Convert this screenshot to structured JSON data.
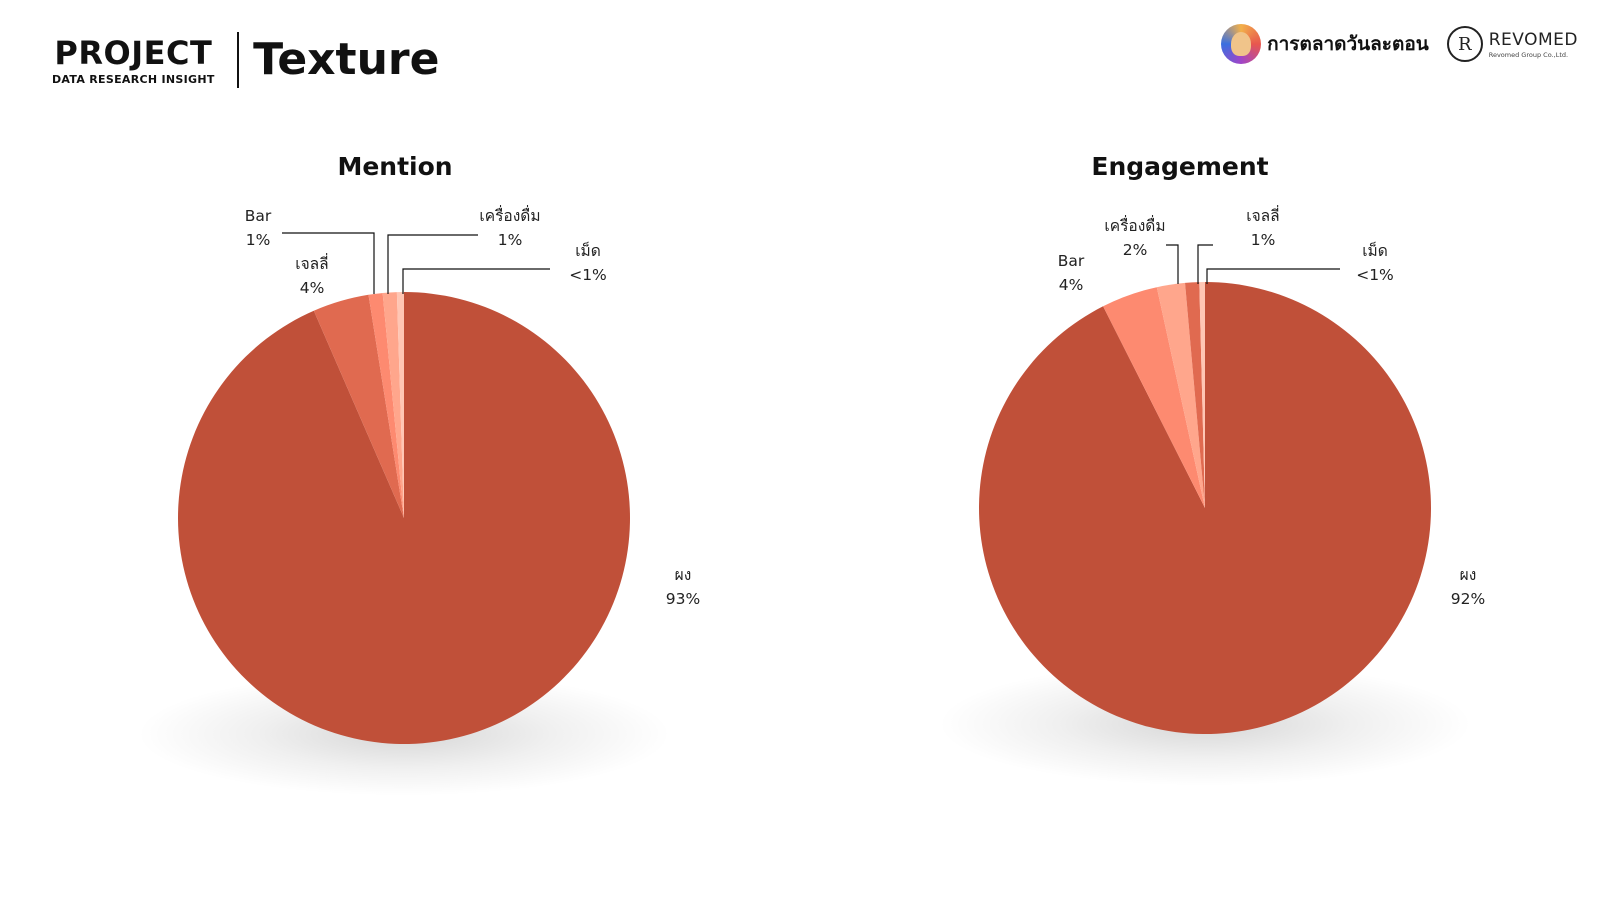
{
  "header": {
    "project_word": "PROJECT",
    "project_sub": "DATA RESEARCH INSIGHT",
    "page_title": "Texture"
  },
  "brands": {
    "brand1_name": "การตลาดวันละตอน",
    "brand1_icon": "brand-avatar-icon",
    "brand2_name": "REVOMED",
    "brand2_sub": "Revomed Group Co.,Ltd.",
    "brand2_icon": "revomed-monogram-icon"
  },
  "chart_data": [
    {
      "type": "pie",
      "title": "Mention",
      "series": [
        {
          "name": "ผง",
          "value": 93,
          "label": "93%",
          "color": "#c05039"
        },
        {
          "name": "เจลลี่",
          "value": 4,
          "label": "4%",
          "color": "#e06a50"
        },
        {
          "name": "Bar",
          "value": 1,
          "label": "1%",
          "color": "#fd8a70"
        },
        {
          "name": "เครื่องดื่ม",
          "value": 1,
          "label": "1%",
          "color": "#ffa68c"
        },
        {
          "name": "เม็ด",
          "value": 0.5,
          "label": "<1%",
          "color": "#ffc6b4"
        }
      ]
    },
    {
      "type": "pie",
      "title": "Engagement",
      "series": [
        {
          "name": "ผง",
          "value": 92,
          "label": "92%",
          "color": "#c05039"
        },
        {
          "name": "Bar",
          "value": 4,
          "label": "4%",
          "color": "#fd8a70"
        },
        {
          "name": "เครื่องดื่ม",
          "value": 2,
          "label": "2%",
          "color": "#ffa68c"
        },
        {
          "name": "เจลลี่",
          "value": 1,
          "label": "1%",
          "color": "#e06a50"
        },
        {
          "name": "เม็ด",
          "value": 0.4,
          "label": "<1%",
          "color": "#ffc6b4"
        }
      ]
    }
  ]
}
